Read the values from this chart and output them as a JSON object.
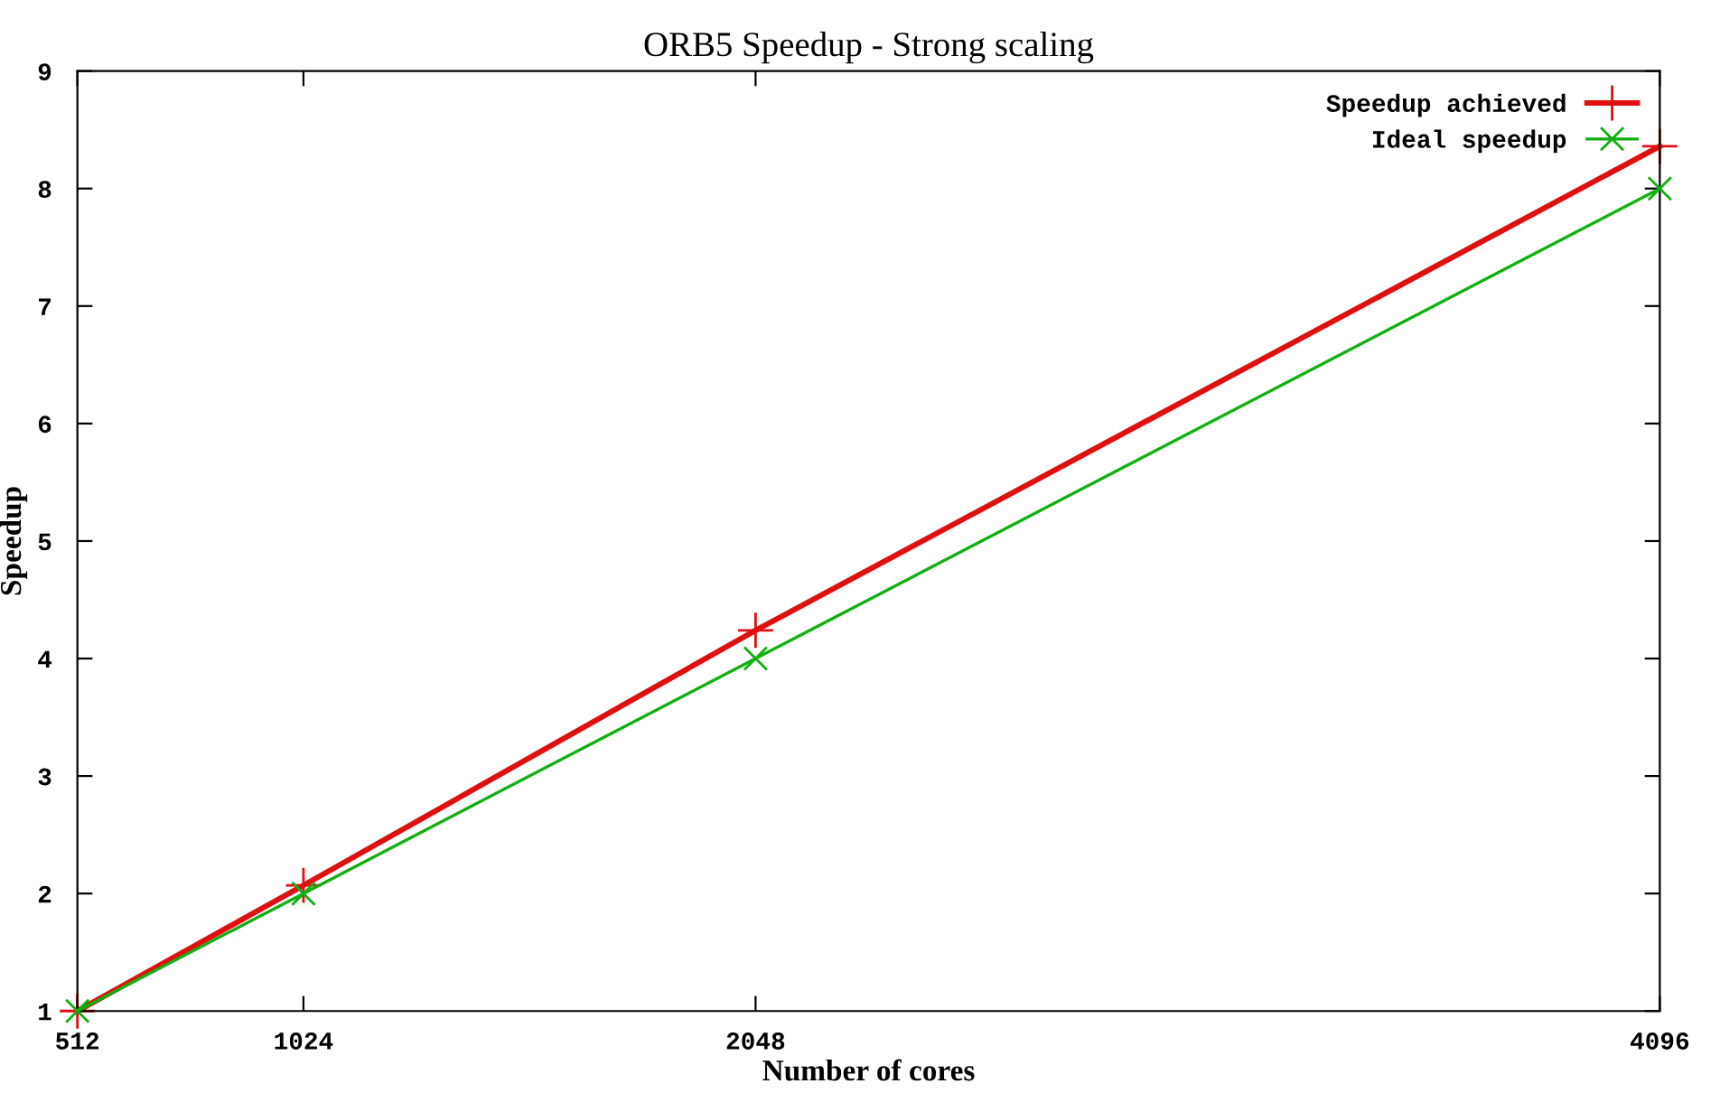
{
  "chart_data": {
    "type": "line",
    "title": "ORB5 Speedup - Strong scaling",
    "xlabel": "Number of cores",
    "ylabel": "Speedup",
    "x": [
      512,
      1024,
      2048,
      4096
    ],
    "xlim": [
      512,
      4096
    ],
    "xticks": [
      512,
      1024,
      2048,
      4096
    ],
    "ylim": [
      1,
      9
    ],
    "yticks": [
      1,
      2,
      3,
      4,
      5,
      6,
      7,
      8,
      9
    ],
    "series": [
      {
        "name": "Speedup achieved",
        "color": "#e01010",
        "marker": "plus",
        "values": [
          1,
          2.07,
          4.24,
          8.36
        ]
      },
      {
        "name": "Ideal speedup",
        "color": "#10b010",
        "marker": "cross",
        "values": [
          1,
          2,
          4,
          8
        ]
      }
    ],
    "legend": "top right",
    "grid": false
  }
}
